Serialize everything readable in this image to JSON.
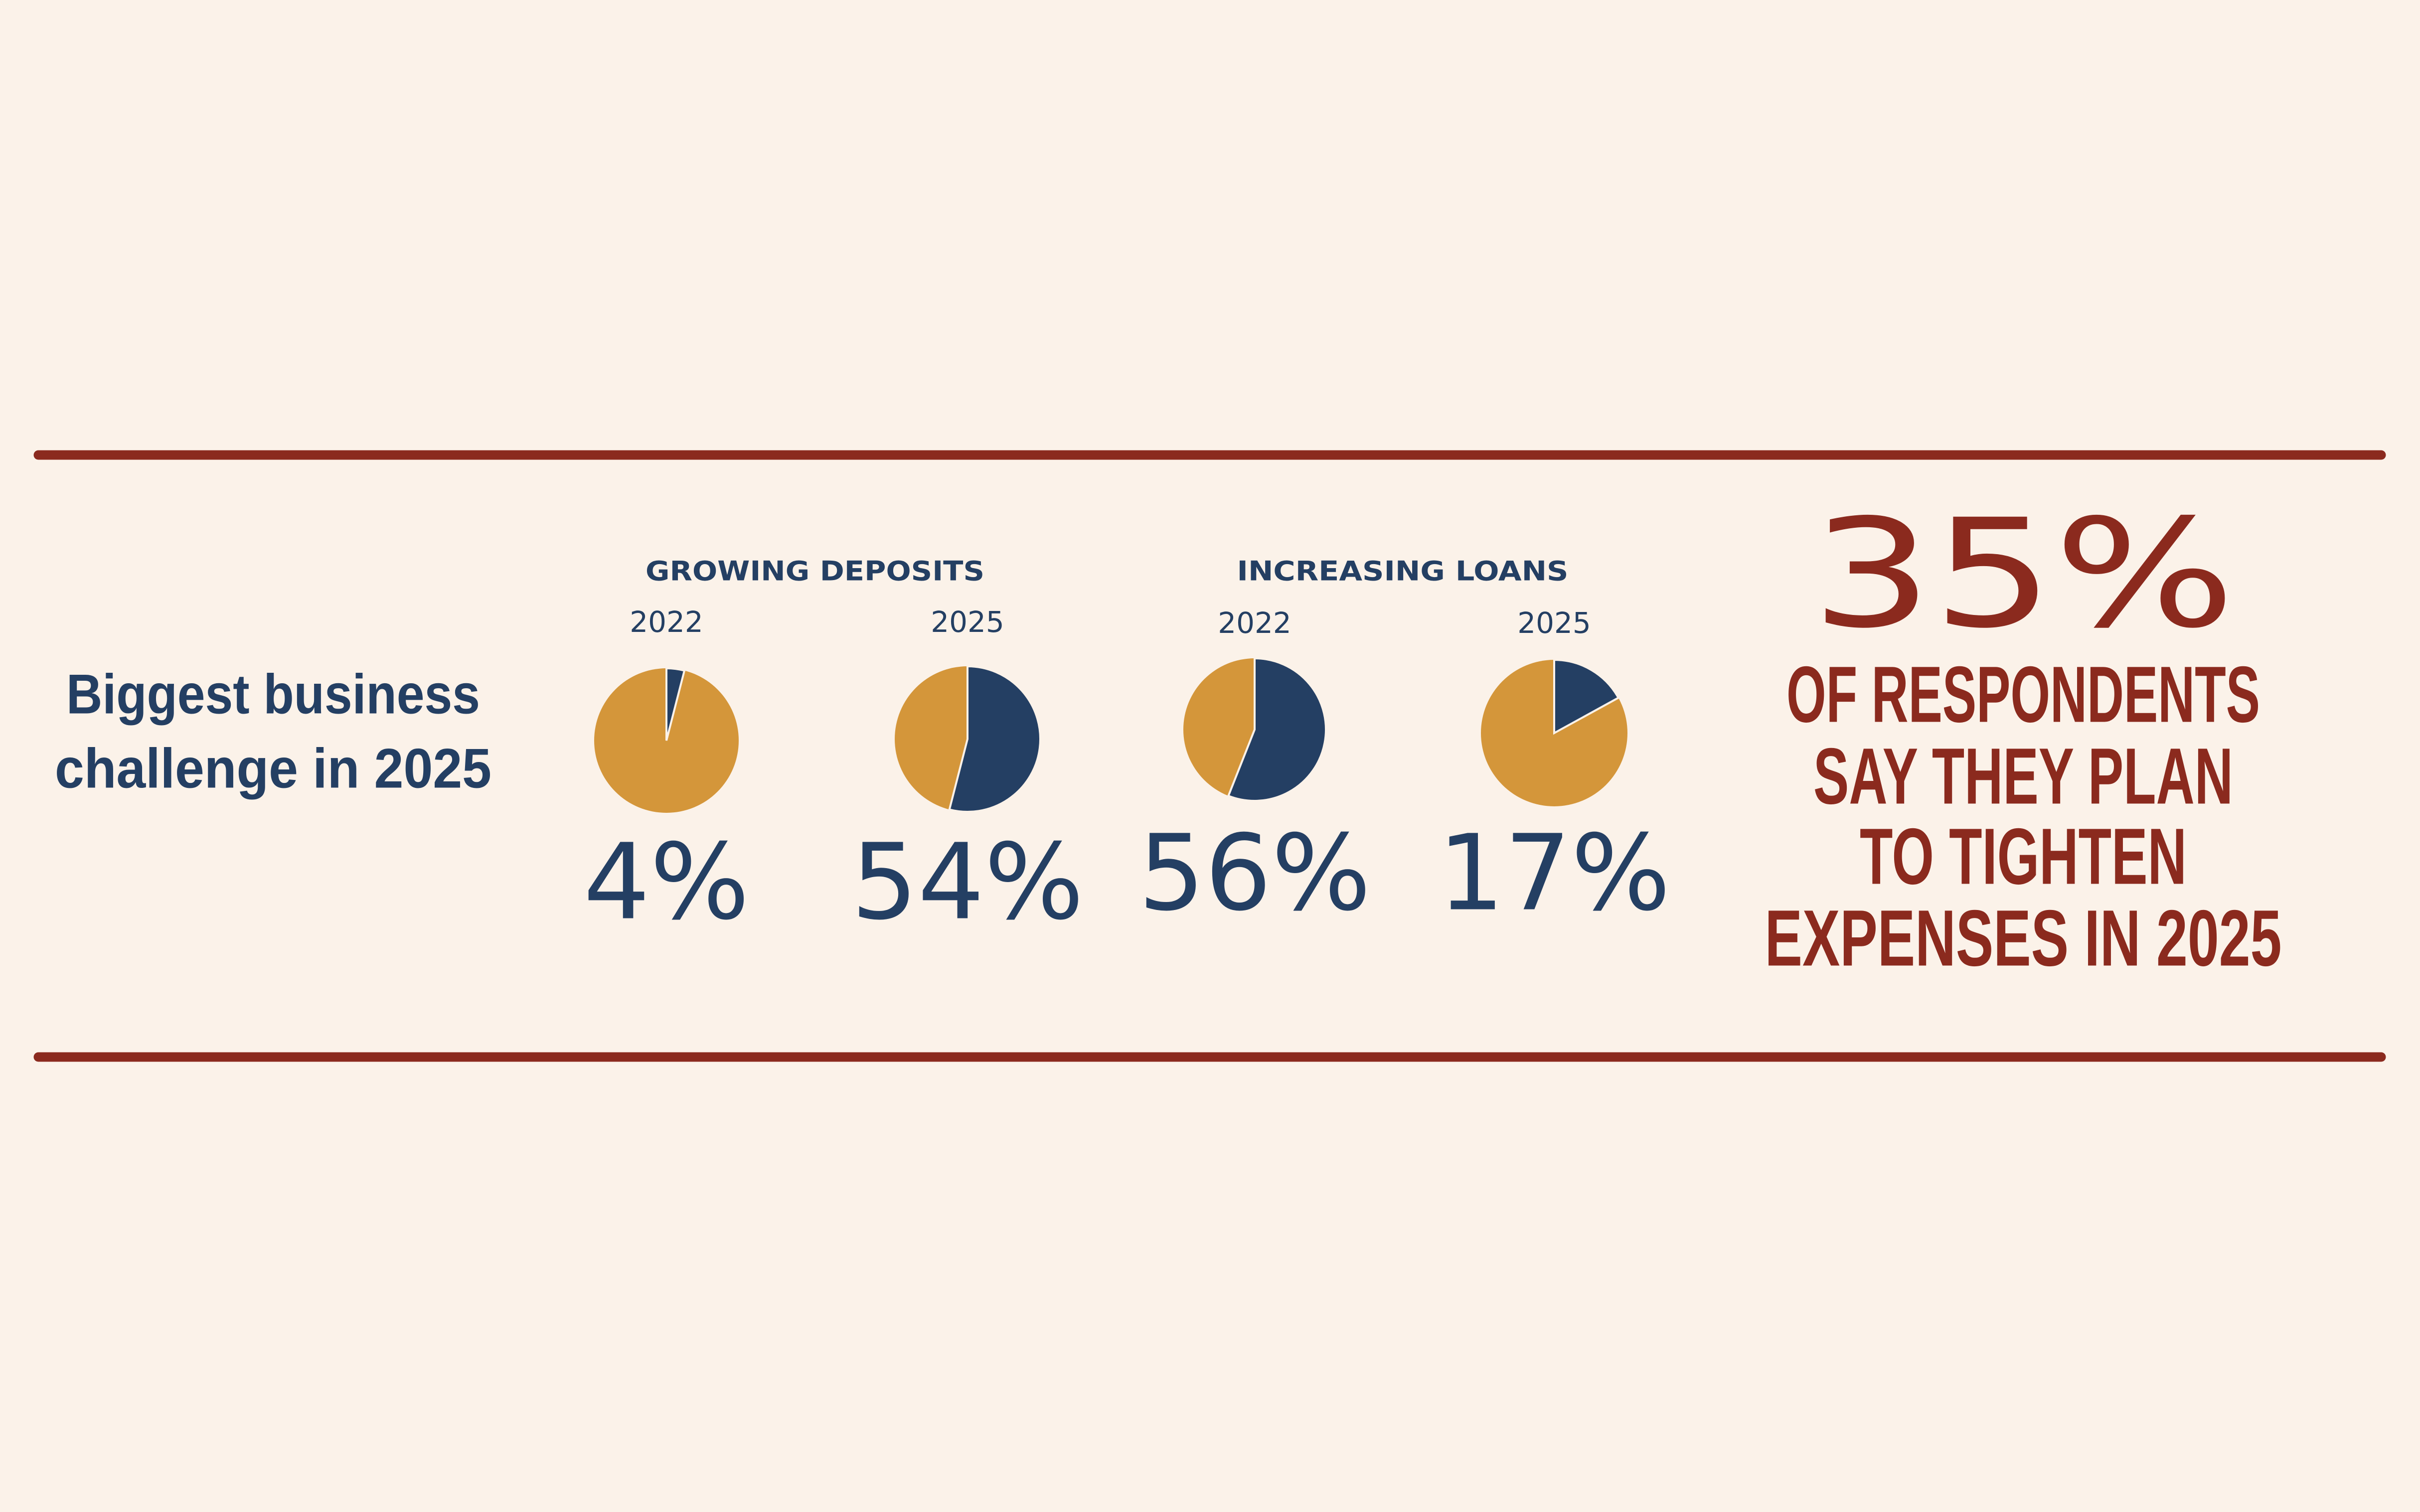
{
  "headline": [
    "Biggest business",
    "challenge in 2025"
  ],
  "groups": [
    "GROWING DEPOSITS",
    "INCREASING LOANS"
  ],
  "chart_data": [
    {
      "type": "pie",
      "title": "2022",
      "values": [
        4
      ],
      "value_labels": [
        "4%"
      ],
      "color": "#243f63",
      "background": "#d4963a"
    },
    {
      "type": "pie",
      "title": "2025",
      "values": [
        54
      ],
      "value_labels": [
        "54%"
      ],
      "color": "#243f63",
      "background": "#d4963a"
    },
    {
      "type": "pie",
      "title": "2022",
      "values": [
        56
      ],
      "value_labels": [
        "56%"
      ],
      "color": "#243f63",
      "background": "#d4963a"
    },
    {
      "type": "pie",
      "title": "2025",
      "values": [
        17
      ],
      "value_labels": [
        "17%"
      ],
      "color": "#243f63",
      "background": "#d4963a"
    }
  ],
  "callout": {
    "value": "35%",
    "text": [
      "OF RESPONDENTS",
      "SAY THEY PLAN",
      "TO TIGHTEN",
      "EXPENSES IN 2025"
    ]
  }
}
